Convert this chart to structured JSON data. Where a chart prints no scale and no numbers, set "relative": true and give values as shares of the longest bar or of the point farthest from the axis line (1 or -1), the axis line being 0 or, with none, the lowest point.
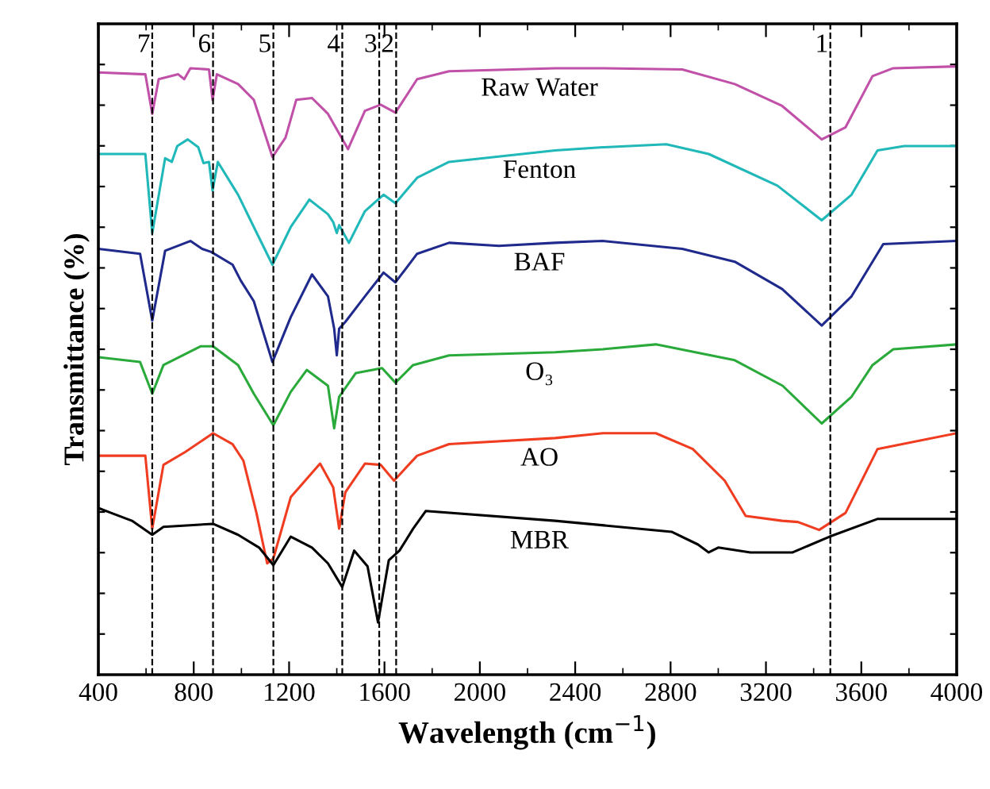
{
  "chart_data": {
    "type": "line",
    "relative": true,
    "xlabel": "Wavelength (cm$^{−1}$)",
    "ylabel": "Transmittance (%)",
    "xlim": [
      400,
      4000
    ],
    "xticks": [
      400,
      800,
      1200,
      1600,
      2000,
      2400,
      2800,
      3200,
      3600,
      4000
    ],
    "tick_labels": "x",
    "grid": false,
    "legend": false,
    "ref_lines": [
      {
        "axis": "x",
        "value": 3470,
        "line_style": "dashed"
      },
      {
        "axis": "x",
        "value": 1649,
        "line_style": "dashed"
      },
      {
        "axis": "x",
        "value": 1578,
        "line_style": "dashed"
      },
      {
        "axis": "x",
        "value": 1423,
        "line_style": "dashed"
      },
      {
        "axis": "x",
        "value": 1134,
        "line_style": "dashed"
      },
      {
        "axis": "x",
        "value": 881,
        "line_style": "dashed"
      },
      {
        "axis": "x",
        "value": 626,
        "line_style": "dashed"
      }
    ],
    "annotations": [
      {
        "text": "1",
        "x": 3470
      },
      {
        "text": "2",
        "x": 1649
      },
      {
        "text": "3",
        "x": 1578
      },
      {
        "text": "4",
        "x": 1423
      },
      {
        "text": "5",
        "x": 1134
      },
      {
        "text": "6",
        "x": 881
      },
      {
        "text": "7",
        "x": 626
      }
    ],
    "series": [
      {
        "name": "Raw Water",
        "color": "#c050a8",
        "x": [
          400,
          597,
          626,
          653,
          735,
          760,
          786,
          864,
          879,
          897,
          986,
          1052,
          1130,
          1185,
          1230,
          1296,
          1363,
          1447,
          1518,
          1584,
          1646,
          1737,
          1871,
          2316,
          2516,
          2849,
          3069,
          3268,
          3434,
          3534,
          3647,
          3734,
          4000
        ],
        "values": [
          0.99,
          0.987,
          0.922,
          0.979,
          0.987,
          0.979,
          0.997,
          0.995,
          0.945,
          0.987,
          0.971,
          0.945,
          0.851,
          0.883,
          0.945,
          0.948,
          0.922,
          0.864,
          0.927,
          0.937,
          0.924,
          0.979,
          0.992,
          0.997,
          0.997,
          0.995,
          0.971,
          0.935,
          0.88,
          0.9,
          0.984,
          0.997,
          1.0
        ]
      },
      {
        "name": "Fenton",
        "color": "#20b8b8",
        "x": [
          400,
          597,
          626,
          680,
          708,
          731,
          775,
          819,
          841,
          864,
          879,
          901,
          986,
          1052,
          1130,
          1207,
          1285,
          1363,
          1385,
          1400,
          1410,
          1451,
          1518,
          1596,
          1646,
          1737,
          1871,
          2316,
          2516,
          2782,
          2960,
          3248,
          3434,
          3559,
          3668,
          3780,
          4000
        ],
        "values": [
          0.856,
          0.856,
          0.726,
          0.849,
          0.843,
          0.869,
          0.88,
          0.867,
          0.841,
          0.843,
          0.796,
          0.843,
          0.789,
          0.736,
          0.674,
          0.736,
          0.781,
          0.757,
          0.744,
          0.726,
          0.739,
          0.71,
          0.762,
          0.789,
          0.775,
          0.817,
          0.843,
          0.862,
          0.867,
          0.872,
          0.856,
          0.804,
          0.747,
          0.789,
          0.862,
          0.869,
          0.869
        ]
      },
      {
        "name": "BAF",
        "color": "#1f2a8c",
        "x": [
          400,
          575,
          626,
          680,
          786,
          835,
          873,
          963,
          997,
          1052,
          1130,
          1207,
          1296,
          1363,
          1389,
          1400,
          1410,
          1436,
          1518,
          1596,
          1646,
          1737,
          1871,
          2080,
          2316,
          2516,
          2849,
          3069,
          3268,
          3434,
          3559,
          3692,
          4000
        ],
        "values": [
          0.7,
          0.692,
          0.582,
          0.697,
          0.713,
          0.7,
          0.695,
          0.674,
          0.648,
          0.614,
          0.514,
          0.588,
          0.658,
          0.622,
          0.569,
          0.525,
          0.569,
          0.58,
          0.622,
          0.661,
          0.645,
          0.692,
          0.71,
          0.705,
          0.71,
          0.713,
          0.7,
          0.679,
          0.634,
          0.574,
          0.622,
          0.708,
          0.713
        ]
      },
      {
        "name": "O₃",
        "color": "#2aaa3a",
        "x": [
          400,
          575,
          626,
          673,
          830,
          881,
          986,
          1052,
          1134,
          1207,
          1274,
          1363,
          1389,
          1410,
          1480,
          1590,
          1646,
          1720,
          1871,
          2316,
          2516,
          2738,
          3069,
          3270,
          3434,
          3559,
          3647,
          3734,
          4000
        ],
        "values": [
          0.522,
          0.514,
          0.462,
          0.509,
          0.54,
          0.54,
          0.509,
          0.462,
          0.41,
          0.465,
          0.501,
          0.475,
          0.405,
          0.457,
          0.496,
          0.504,
          0.48,
          0.509,
          0.525,
          0.53,
          0.535,
          0.543,
          0.517,
          0.475,
          0.413,
          0.457,
          0.509,
          0.535,
          0.543
        ]
      },
      {
        "name": "AO",
        "color": "#f03c20",
        "x": [
          400,
          597,
          626,
          673,
          764,
          881,
          963,
          1008,
          1063,
          1108,
          1134,
          1207,
          1330,
          1385,
          1410,
          1436,
          1518,
          1584,
          1640,
          1737,
          1871,
          2316,
          2516,
          2738,
          2893,
          3027,
          3115,
          3268,
          3334,
          3423,
          3534,
          3668,
          4000
        ],
        "values": [
          0.36,
          0.36,
          0.24,
          0.345,
          0.366,
          0.397,
          0.379,
          0.352,
          0.266,
          0.183,
          0.191,
          0.292,
          0.347,
          0.308,
          0.24,
          0.3,
          0.347,
          0.345,
          0.319,
          0.36,
          0.379,
          0.389,
          0.397,
          0.397,
          0.371,
          0.319,
          0.261,
          0.253,
          0.251,
          0.238,
          0.266,
          0.371,
          0.397
        ]
      },
      {
        "name": "MBR",
        "color": "#000000",
        "x": [
          400,
          453,
          541,
          626,
          673,
          881,
          986,
          1074,
          1134,
          1207,
          1296,
          1363,
          1423,
          1473,
          1529,
          1573,
          1618,
          1663,
          1720,
          1773,
          2316,
          2804,
          2915,
          2960,
          3000,
          3135,
          3312,
          3467,
          3667,
          4000
        ],
        "values": [
          0.274,
          0.266,
          0.253,
          0.23,
          0.243,
          0.248,
          0.23,
          0.209,
          0.18,
          0.227,
          0.209,
          0.183,
          0.144,
          0.204,
          0.178,
          0.086,
          0.188,
          0.204,
          0.24,
          0.269,
          0.253,
          0.235,
          0.214,
          0.201,
          0.209,
          0.201,
          0.201,
          0.227,
          0.256,
          0.256
        ]
      }
    ]
  }
}
